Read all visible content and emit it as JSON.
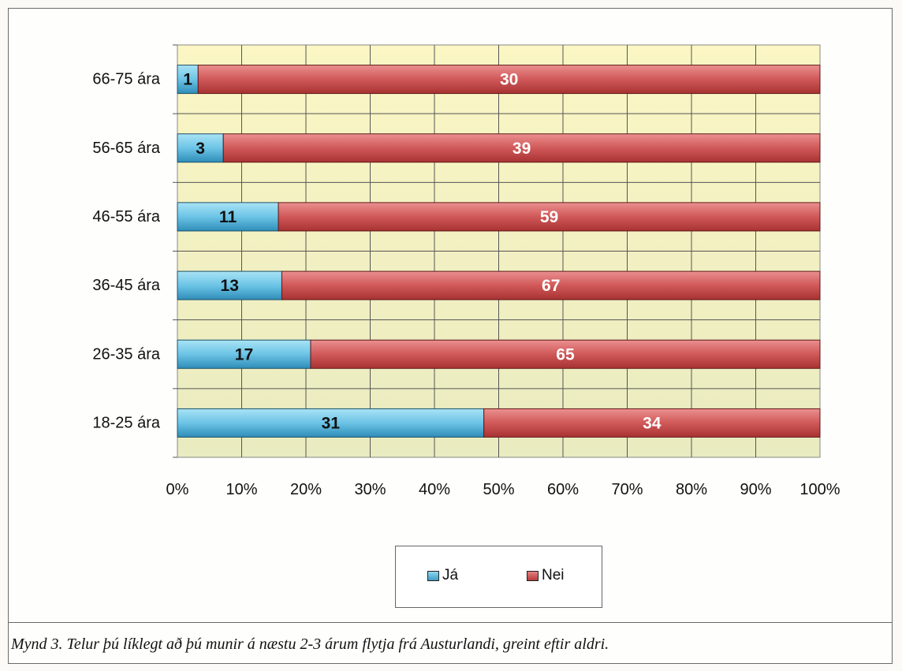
{
  "chart_data": {
    "type": "bar",
    "orientation": "horizontal",
    "stacked": "percent",
    "categories": [
      "66-75 ára",
      "56-65 ára",
      "46-55 ára",
      "36-45 ára",
      "26-35 ára",
      "18-25 ára"
    ],
    "series": [
      {
        "name": "Já",
        "values": [
          1,
          3,
          11,
          13,
          17,
          31
        ],
        "color": "#4fb3d9"
      },
      {
        "name": "Nei",
        "values": [
          30,
          39,
          59,
          67,
          65,
          34
        ],
        "color": "#c94444"
      }
    ],
    "x_ticks": [
      "0%",
      "10%",
      "20%",
      "30%",
      "40%",
      "50%",
      "60%",
      "70%",
      "80%",
      "90%",
      "100%"
    ],
    "xlim": [
      0,
      100
    ],
    "grid": true,
    "legend_position": "bottom",
    "plot_background": "#f6f3c8"
  },
  "caption": "Mynd 3.  Telur þú líklegt að þú munir á næstu 2-3 árum flytja frá Austurlandi, greint eftir aldri."
}
